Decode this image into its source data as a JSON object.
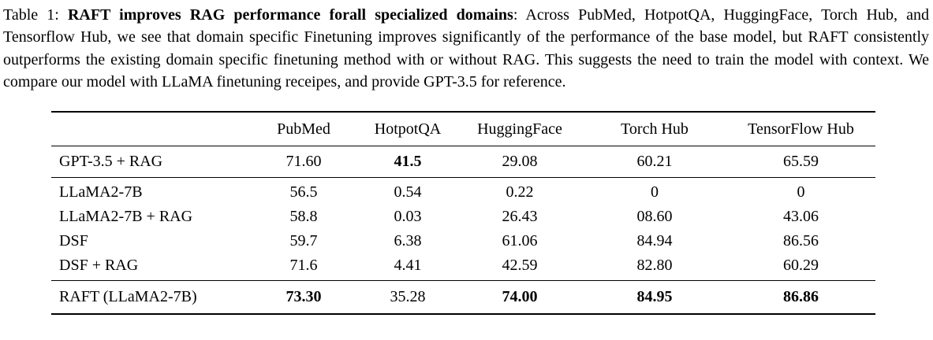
{
  "caption": {
    "prefix": "Table 1: ",
    "bold_title": "RAFT improves RAG performance forall specialized domains",
    "body": ": Across PubMed, HotpotQA, HuggingFace, Torch Hub, and Tensorflow Hub, we see that domain specific Finetuning improves significantly of the performance of the base model, but RAFT consistently outperforms the existing domain specific finetuning method with or without RAG. This suggests the need to train the model with context. We compare our model with LLaMA finetuning receipes, and provide GPT-3.5 for reference."
  },
  "table": {
    "columns": [
      "",
      "PubMed",
      "HotpotQA",
      "HuggingFace",
      "Torch Hub",
      "TensorFlow Hub"
    ],
    "groups": [
      {
        "name": "gpt-reference",
        "rows": [
          {
            "label": "GPT-3.5 + RAG",
            "values": [
              "71.60",
              "41.5",
              "29.08",
              "60.21",
              "65.59"
            ],
            "bold": [
              false,
              true,
              false,
              false,
              false
            ]
          }
        ]
      },
      {
        "name": "llama-baselines",
        "rows": [
          {
            "label": "LLaMA2-7B",
            "values": [
              "56.5",
              "0.54",
              "0.22",
              "0",
              "0"
            ],
            "bold": [
              false,
              false,
              false,
              false,
              false
            ]
          },
          {
            "label": "LLaMA2-7B + RAG",
            "values": [
              "58.8",
              "0.03",
              "26.43",
              "08.60",
              "43.06"
            ],
            "bold": [
              false,
              false,
              false,
              false,
              false
            ]
          },
          {
            "label": "DSF",
            "values": [
              "59.7",
              "6.38",
              "61.06",
              "84.94",
              "86.56"
            ],
            "bold": [
              false,
              false,
              false,
              false,
              false
            ]
          },
          {
            "label": "DSF + RAG",
            "values": [
              "71.6",
              "4.41",
              "42.59",
              "82.80",
              "60.29"
            ],
            "bold": [
              false,
              false,
              false,
              false,
              false
            ]
          }
        ]
      },
      {
        "name": "raft",
        "rows": [
          {
            "label": "RAFT (LLaMA2-7B)",
            "values": [
              "73.30",
              "35.28",
              "74.00",
              "84.95",
              "86.86"
            ],
            "bold": [
              true,
              false,
              true,
              true,
              true
            ]
          }
        ]
      }
    ]
  }
}
